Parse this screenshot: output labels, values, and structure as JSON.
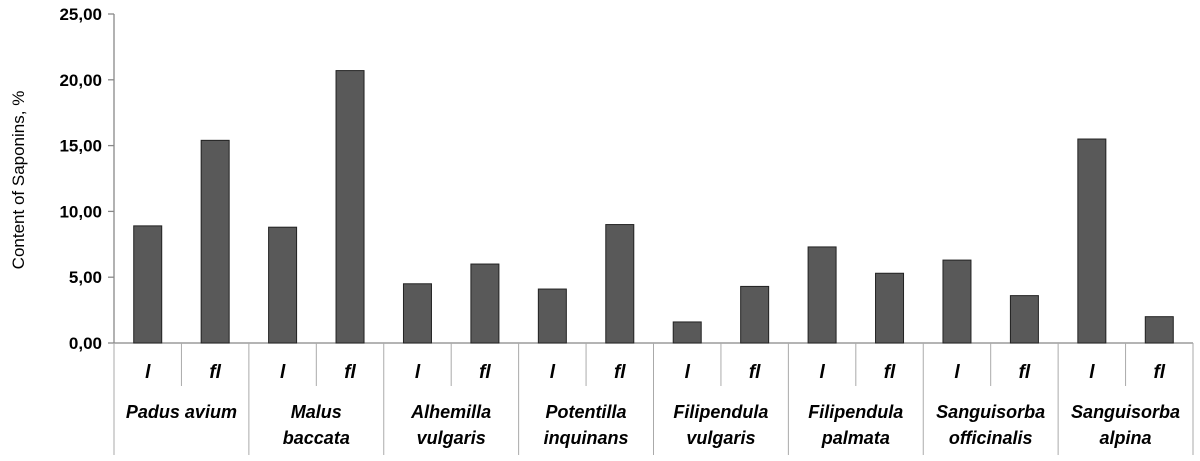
{
  "chart_data": {
    "type": "bar",
    "ylabel": "Content of  Saponins, %",
    "ylim": [
      0,
      25
    ],
    "yticks": [
      "0,00",
      "5,00",
      "10,00",
      "15,00",
      "20,00",
      "25,00"
    ],
    "groups": [
      {
        "name_lines": [
          "Padus avium"
        ],
        "bars": [
          {
            "label": "l",
            "value": 8.9
          },
          {
            "label": "fl",
            "value": 15.4
          }
        ]
      },
      {
        "name_lines": [
          "Malus",
          "baccata"
        ],
        "bars": [
          {
            "label": "l",
            "value": 8.8
          },
          {
            "label": "fl",
            "value": 20.7
          }
        ]
      },
      {
        "name_lines": [
          "Alhemilla",
          "vulgaris"
        ],
        "bars": [
          {
            "label": "l",
            "value": 4.5
          },
          {
            "label": "fl",
            "value": 6.0
          }
        ]
      },
      {
        "name_lines": [
          "Potentilla",
          "inquinans"
        ],
        "bars": [
          {
            "label": "l",
            "value": 4.1
          },
          {
            "label": "fl",
            "value": 9.0
          }
        ]
      },
      {
        "name_lines": [
          "Filipendula",
          "vulgaris"
        ],
        "bars": [
          {
            "label": "l",
            "value": 1.6
          },
          {
            "label": "fl",
            "value": 4.3
          }
        ]
      },
      {
        "name_lines": [
          "Filipendula",
          "palmata"
        ],
        "bars": [
          {
            "label": "l",
            "value": 7.3
          },
          {
            "label": "fl",
            "value": 5.3
          }
        ]
      },
      {
        "name_lines": [
          "Sanguisorba",
          "officinalis"
        ],
        "bars": [
          {
            "label": "l",
            "value": 6.3
          },
          {
            "label": "fl",
            "value": 3.6
          }
        ]
      },
      {
        "name_lines": [
          "Sanguisorba",
          "alpina"
        ],
        "bars": [
          {
            "label": "l",
            "value": 15.5
          },
          {
            "label": "fl",
            "value": 2.0
          }
        ]
      }
    ],
    "grid": false,
    "legend": "none",
    "colors": {
      "bar": "#595959",
      "axis": "#888888"
    }
  }
}
